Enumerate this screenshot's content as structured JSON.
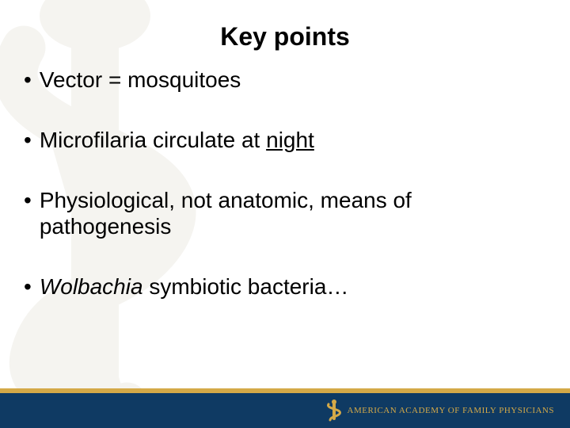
{
  "title": {
    "text": "Key points",
    "fontsize": 32,
    "color": "#000000"
  },
  "bullets": {
    "fontsize": 28,
    "color": "#000000",
    "dot": "•",
    "gap": 44,
    "items": [
      {
        "segments": [
          {
            "text": "Vector = mosquitoes"
          }
        ]
      },
      {
        "segments": [
          {
            "text": "Microfilaria circulate at "
          },
          {
            "text": "night",
            "underline": true
          }
        ]
      },
      {
        "segments": [
          {
            "text": "Physiological, not anatomic, means of pathogenesis"
          }
        ]
      },
      {
        "segments": [
          {
            "text": "Wolbachia",
            "italic": true
          },
          {
            "text": " symbiotic bacteria…"
          }
        ]
      }
    ]
  },
  "footer": {
    "yellow_bar": {
      "height": 6,
      "color": "#d4a948"
    },
    "blue_bar": {
      "height": 44,
      "color": "#0f3a63"
    },
    "logo": {
      "icon_color": "#d4a948",
      "text": "AMERICAN ACADEMY OF FAMILY PHYSICIANS",
      "text_color": "#d4a948",
      "fontsize": 11
    }
  },
  "watermark": {
    "color": "#e3e0d7"
  }
}
